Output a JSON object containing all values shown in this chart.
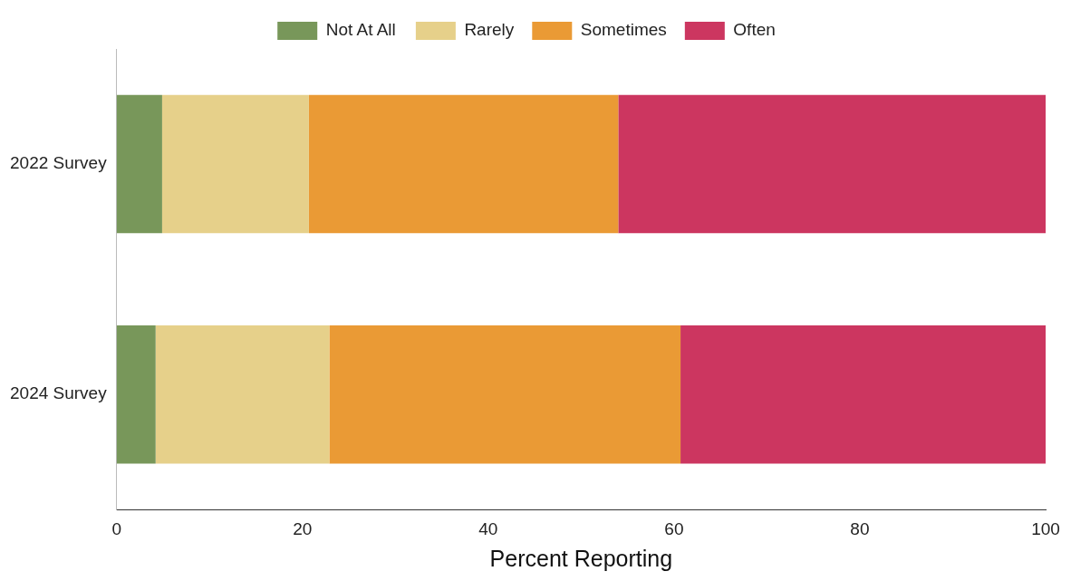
{
  "chart_data": {
    "type": "bar",
    "orientation": "horizontal",
    "stacked": true,
    "categories": [
      "2022 Survey",
      "2024 Survey"
    ],
    "series": [
      {
        "name": "Not At All",
        "color": "#78975a",
        "values": [
          4.9,
          4.2
        ]
      },
      {
        "name": "Rarely",
        "color": "#e6d08a",
        "values": [
          15.8,
          18.7
        ]
      },
      {
        "name": "Sometimes",
        "color": "#ea9a35",
        "values": [
          33.3,
          37.8
        ]
      },
      {
        "name": "Often",
        "color": "#cc3660",
        "values": [
          46.0,
          39.3
        ]
      }
    ],
    "xlabel": "Percent Reporting",
    "xlim": [
      0,
      100
    ],
    "xticks": [
      0,
      20,
      40,
      60,
      80,
      100
    ],
    "grid": false,
    "legend": "top"
  }
}
